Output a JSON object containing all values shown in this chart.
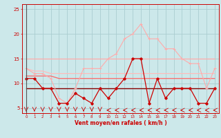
{
  "x": [
    0,
    1,
    2,
    3,
    4,
    5,
    6,
    7,
    8,
    9,
    10,
    11,
    12,
    13,
    14,
    15,
    16,
    17,
    18,
    19,
    20,
    21,
    22,
    23
  ],
  "line_flat_pink15": [
    15,
    15,
    15,
    15,
    15,
    15,
    15,
    15,
    15,
    15,
    15,
    15,
    15,
    15,
    15,
    15,
    15,
    15,
    15,
    15,
    15,
    15,
    15,
    15
  ],
  "line_flat_pink13": [
    13,
    12.5,
    12.5,
    12,
    12,
    12,
    12,
    12,
    12,
    12,
    12,
    12,
    12,
    12,
    12,
    12,
    12,
    12,
    12,
    12,
    12,
    12,
    12,
    12
  ],
  "line_flat_red11": [
    11.5,
    11.5,
    11.5,
    11.5,
    11,
    11,
    11,
    11,
    11,
    11,
    11,
    11,
    11,
    11,
    11,
    11,
    11,
    11,
    11,
    11,
    11,
    11,
    11,
    11
  ],
  "line_flat_darkred9": [
    9,
    9,
    9,
    9,
    9,
    9,
    9,
    9,
    9,
    9,
    9,
    9,
    9,
    9,
    9,
    9,
    9,
    9,
    9,
    9,
    9,
    9,
    9,
    9
  ],
  "line_volatile_dark": [
    11,
    11,
    9,
    9,
    6,
    6,
    8,
    7,
    6,
    9,
    7,
    9,
    11,
    15,
    15,
    6,
    11,
    7,
    9,
    9,
    9,
    6,
    6,
    9
  ],
  "line_volatile_light": [
    13,
    12,
    12,
    11,
    7,
    6,
    9,
    13,
    13,
    13,
    15,
    16,
    19,
    20,
    22,
    19,
    19,
    17,
    17,
    15,
    14,
    14,
    9,
    13
  ],
  "bg_color": "#cce8ea",
  "grid_color": "#aacdd0",
  "color_flat_pink15": "#ffaaaa",
  "color_flat_pink13": "#ffbbbb",
  "color_flat_red11": "#ff6666",
  "color_flat_darkred9": "#880000",
  "color_volatile_dark": "#cc0000",
  "color_volatile_light": "#ffaaaa",
  "xlabel": "Vent moyen/en rafales ( km/h )",
  "ylim_min": 4,
  "ylim_max": 26,
  "yticks": [
    5,
    10,
    15,
    20,
    25
  ],
  "xticks": [
    0,
    1,
    2,
    3,
    4,
    5,
    6,
    7,
    8,
    9,
    10,
    11,
    12,
    13,
    14,
    15,
    16,
    17,
    18,
    19,
    20,
    21,
    22,
    23
  ],
  "arrow_down_indices": [
    0,
    1,
    2,
    3,
    4,
    5,
    6,
    7,
    8,
    9
  ],
  "arrow_left_indices": [
    10,
    11,
    12,
    13,
    14,
    15,
    16,
    17,
    18,
    19,
    20,
    21,
    22,
    23
  ]
}
